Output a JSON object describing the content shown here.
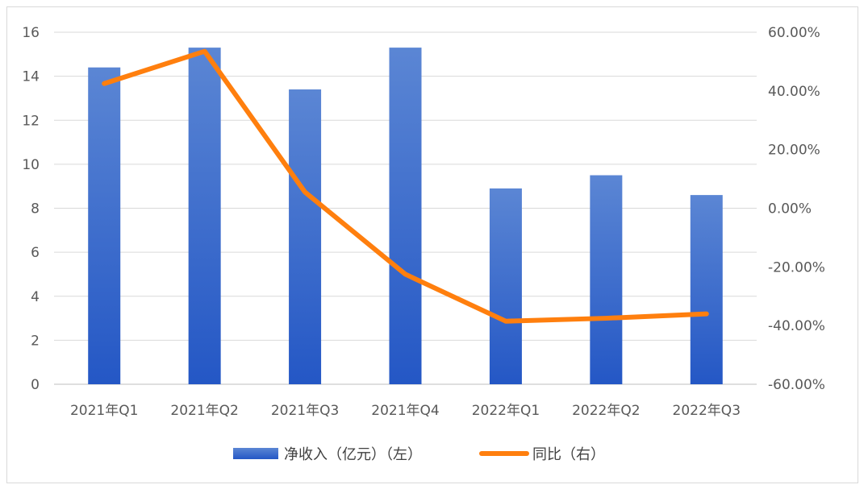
{
  "chart_data": {
    "type": "bar",
    "categories": [
      "2021年Q1",
      "2021年Q2",
      "2021年Q3",
      "2021年Q4",
      "2022年Q1",
      "2022年Q2",
      "2022年Q3"
    ],
    "series": [
      {
        "name": "净收入（亿元）（左）",
        "type": "bar",
        "axis": "left",
        "values": [
          14.4,
          15.3,
          13.4,
          15.3,
          8.9,
          9.5,
          8.6
        ],
        "color": "#3d6fcc"
      },
      {
        "name": "同比（右）",
        "type": "line",
        "axis": "right",
        "values": [
          42.5,
          53.5,
          5.5,
          -22.5,
          -38.5,
          -37.5,
          -36.0
        ],
        "color": "#ff7f0e"
      }
    ],
    "y_left": {
      "ylim": [
        0,
        16
      ],
      "ticks": [
        "0",
        "2",
        "4",
        "6",
        "8",
        "10",
        "12",
        "14",
        "16"
      ]
    },
    "y_right": {
      "ylim": [
        -60,
        60
      ],
      "ticks": [
        "-60.00%",
        "-40.00%",
        "-20.00%",
        "0.00%",
        "20.00%",
        "40.00%",
        "60.00%"
      ]
    },
    "grid": true,
    "legend": "bottom",
    "legend_items": [
      {
        "label": "净收入（亿元）（左）",
        "kind": "bar"
      },
      {
        "label": "同比（右）",
        "kind": "line"
      }
    ]
  }
}
